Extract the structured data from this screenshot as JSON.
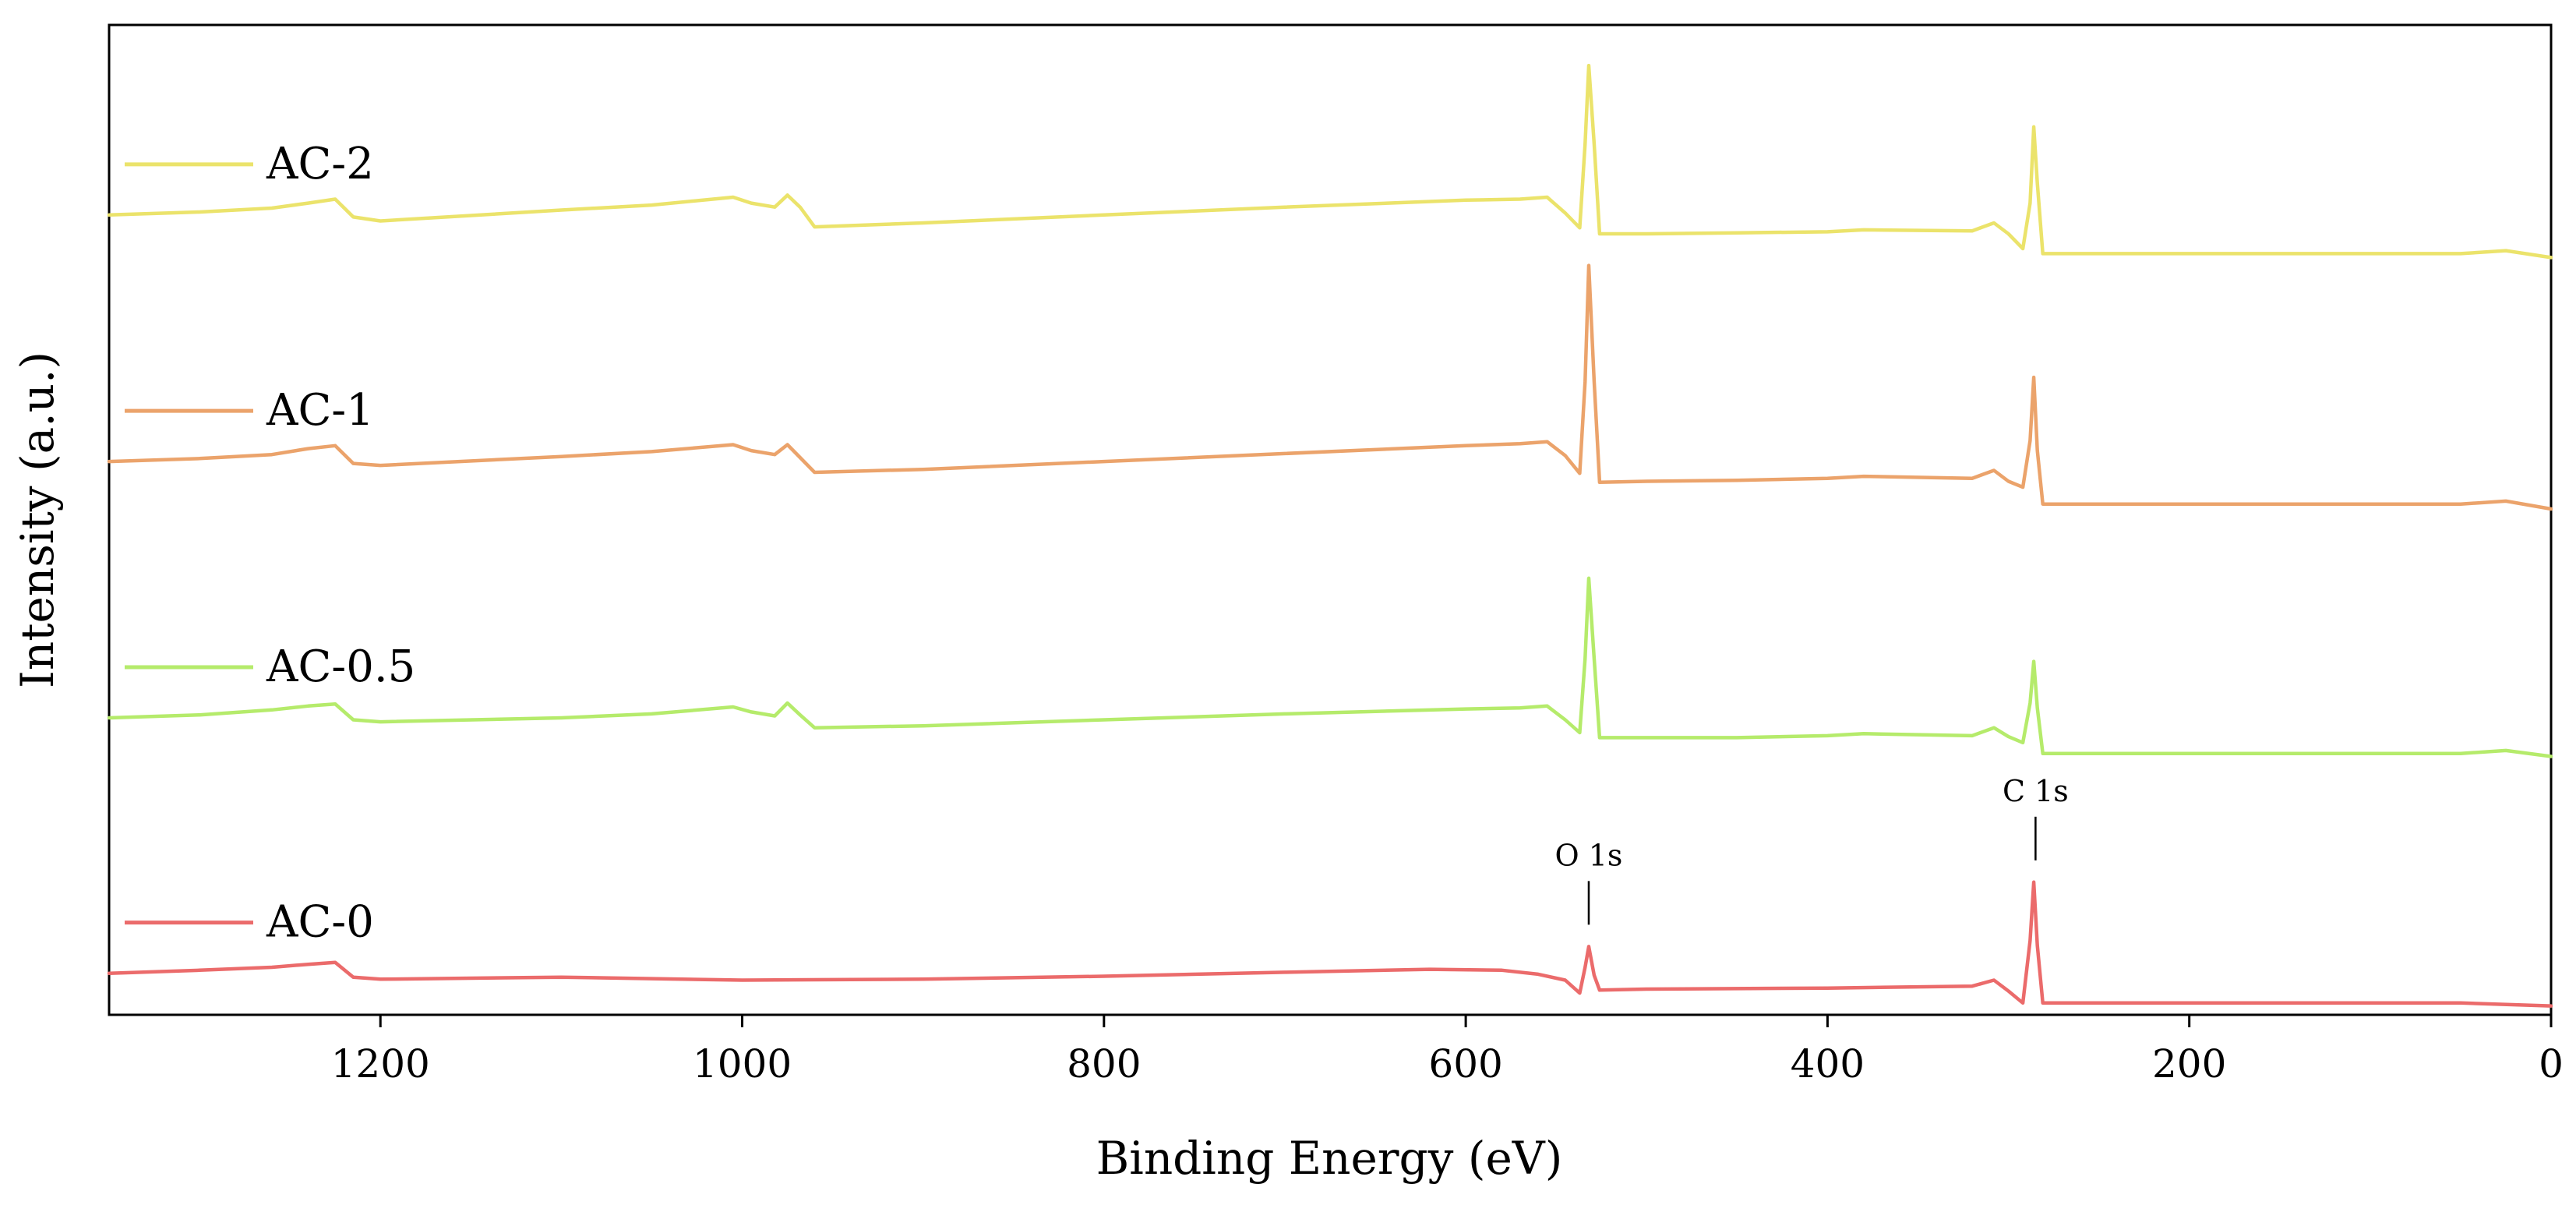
{
  "chart_data": {
    "type": "line",
    "title": "",
    "xlabel": "Binding Energy (eV)",
    "ylabel": "Intensity (a.u.)",
    "xlim": [
      1350,
      0
    ],
    "x_reversed": true,
    "xticks": [
      1200,
      1000,
      800,
      600,
      400,
      200,
      0
    ],
    "xtick_labels": [
      "1200",
      "1000",
      "800",
      "600",
      "400",
      "200",
      "0"
    ],
    "yticks_visible": false,
    "ylim": [
      0,
      100
    ],
    "grid": false,
    "legend_position": "left, inline with each curve",
    "annotations": [
      {
        "text": "O 1s",
        "x": 532
      },
      {
        "text": "C 1s",
        "x": 285
      }
    ],
    "series": [
      {
        "name": "AC-2",
        "color": "#ebe36b",
        "points": [
          [
            1350,
            80.8
          ],
          [
            1300,
            81.1
          ],
          [
            1260,
            81.5
          ],
          [
            1240,
            82.0
          ],
          [
            1225,
            82.4
          ],
          [
            1215,
            80.6
          ],
          [
            1200,
            80.2
          ],
          [
            1100,
            81.3
          ],
          [
            1050,
            81.8
          ],
          [
            1005,
            82.6
          ],
          [
            995,
            82.0
          ],
          [
            982,
            81.6
          ],
          [
            975,
            82.8
          ],
          [
            968,
            81.6
          ],
          [
            960,
            79.6
          ],
          [
            900,
            80.0
          ],
          [
            800,
            80.8
          ],
          [
            700,
            81.6
          ],
          [
            600,
            82.3
          ],
          [
            570,
            82.4
          ],
          [
            555,
            82.6
          ],
          [
            545,
            81.0
          ],
          [
            537,
            79.5
          ],
          [
            534,
            88.0
          ],
          [
            532,
            95.9
          ],
          [
            529,
            88.0
          ],
          [
            526,
            78.9
          ],
          [
            500,
            78.9
          ],
          [
            450,
            79.0
          ],
          [
            400,
            79.1
          ],
          [
            380,
            79.3
          ],
          [
            320,
            79.2
          ],
          [
            308,
            80.0
          ],
          [
            300,
            78.9
          ],
          [
            292,
            77.4
          ],
          [
            288,
            82.0
          ],
          [
            286,
            89.7
          ],
          [
            284,
            84.0
          ],
          [
            281,
            76.9
          ],
          [
            250,
            76.9
          ],
          [
            200,
            76.9
          ],
          [
            100,
            76.9
          ],
          [
            50,
            76.9
          ],
          [
            25,
            77.2
          ],
          [
            0,
            76.5
          ]
        ]
      },
      {
        "name": "AC-1",
        "color": "#eba36b",
        "points": [
          [
            1350,
            55.9
          ],
          [
            1300,
            56.2
          ],
          [
            1260,
            56.6
          ],
          [
            1240,
            57.2
          ],
          [
            1225,
            57.5
          ],
          [
            1215,
            55.7
          ],
          [
            1200,
            55.5
          ],
          [
            1100,
            56.4
          ],
          [
            1050,
            56.9
          ],
          [
            1005,
            57.6
          ],
          [
            995,
            57.0
          ],
          [
            982,
            56.6
          ],
          [
            975,
            57.6
          ],
          [
            968,
            56.3
          ],
          [
            960,
            54.8
          ],
          [
            900,
            55.1
          ],
          [
            800,
            55.9
          ],
          [
            700,
            56.7
          ],
          [
            600,
            57.5
          ],
          [
            570,
            57.7
          ],
          [
            555,
            57.9
          ],
          [
            545,
            56.5
          ],
          [
            537,
            54.7
          ],
          [
            534,
            64.0
          ],
          [
            532,
            75.7
          ],
          [
            529,
            64.0
          ],
          [
            526,
            53.8
          ],
          [
            500,
            53.9
          ],
          [
            450,
            54.0
          ],
          [
            400,
            54.2
          ],
          [
            380,
            54.4
          ],
          [
            320,
            54.2
          ],
          [
            308,
            55.0
          ],
          [
            300,
            53.9
          ],
          [
            292,
            53.3
          ],
          [
            288,
            58.0
          ],
          [
            286,
            64.4
          ],
          [
            284,
            57.0
          ],
          [
            281,
            51.6
          ],
          [
            250,
            51.6
          ],
          [
            200,
            51.6
          ],
          [
            100,
            51.6
          ],
          [
            50,
            51.6
          ],
          [
            25,
            51.9
          ],
          [
            0,
            51.1
          ]
        ]
      },
      {
        "name": "AC-0.5",
        "color": "#b5eb6b",
        "points": [
          [
            1350,
            30.0
          ],
          [
            1300,
            30.3
          ],
          [
            1260,
            30.8
          ],
          [
            1240,
            31.2
          ],
          [
            1225,
            31.4
          ],
          [
            1215,
            29.8
          ],
          [
            1200,
            29.6
          ],
          [
            1100,
            30.0
          ],
          [
            1050,
            30.4
          ],
          [
            1005,
            31.1
          ],
          [
            995,
            30.6
          ],
          [
            982,
            30.2
          ],
          [
            975,
            31.5
          ],
          [
            968,
            30.3
          ],
          [
            960,
            29.0
          ],
          [
            900,
            29.2
          ],
          [
            800,
            29.8
          ],
          [
            700,
            30.4
          ],
          [
            600,
            30.9
          ],
          [
            570,
            31.0
          ],
          [
            555,
            31.2
          ],
          [
            545,
            29.8
          ],
          [
            537,
            28.5
          ],
          [
            534,
            36.0
          ],
          [
            532,
            44.1
          ],
          [
            529,
            36.0
          ],
          [
            526,
            28.0
          ],
          [
            500,
            28.0
          ],
          [
            450,
            28.0
          ],
          [
            400,
            28.2
          ],
          [
            380,
            28.4
          ],
          [
            320,
            28.2
          ],
          [
            308,
            29.0
          ],
          [
            300,
            28.1
          ],
          [
            292,
            27.5
          ],
          [
            288,
            31.5
          ],
          [
            286,
            35.7
          ],
          [
            284,
            31.0
          ],
          [
            281,
            26.4
          ],
          [
            250,
            26.4
          ],
          [
            200,
            26.4
          ],
          [
            100,
            26.4
          ],
          [
            50,
            26.4
          ],
          [
            25,
            26.7
          ],
          [
            0,
            26.1
          ]
        ]
      },
      {
        "name": "AC-0",
        "color": "#eb6b6b",
        "points": [
          [
            1350,
            4.2
          ],
          [
            1300,
            4.5
          ],
          [
            1260,
            4.8
          ],
          [
            1240,
            5.1
          ],
          [
            1225,
            5.3
          ],
          [
            1215,
            3.8
          ],
          [
            1200,
            3.6
          ],
          [
            1100,
            3.8
          ],
          [
            1000,
            3.5
          ],
          [
            900,
            3.6
          ],
          [
            800,
            3.9
          ],
          [
            700,
            4.3
          ],
          [
            620,
            4.6
          ],
          [
            580,
            4.5
          ],
          [
            560,
            4.1
          ],
          [
            545,
            3.5
          ],
          [
            537,
            2.2
          ],
          [
            534,
            4.8
          ],
          [
            532,
            6.9
          ],
          [
            529,
            4.0
          ],
          [
            526,
            2.5
          ],
          [
            500,
            2.6
          ],
          [
            400,
            2.7
          ],
          [
            320,
            2.9
          ],
          [
            308,
            3.5
          ],
          [
            300,
            2.4
          ],
          [
            292,
            1.2
          ],
          [
            288,
            7.5
          ],
          [
            286,
            13.4
          ],
          [
            284,
            7.0
          ],
          [
            281,
            1.2
          ],
          [
            250,
            1.2
          ],
          [
            200,
            1.2
          ],
          [
            100,
            1.2
          ],
          [
            50,
            1.2
          ],
          [
            0,
            0.9
          ]
        ]
      }
    ]
  }
}
